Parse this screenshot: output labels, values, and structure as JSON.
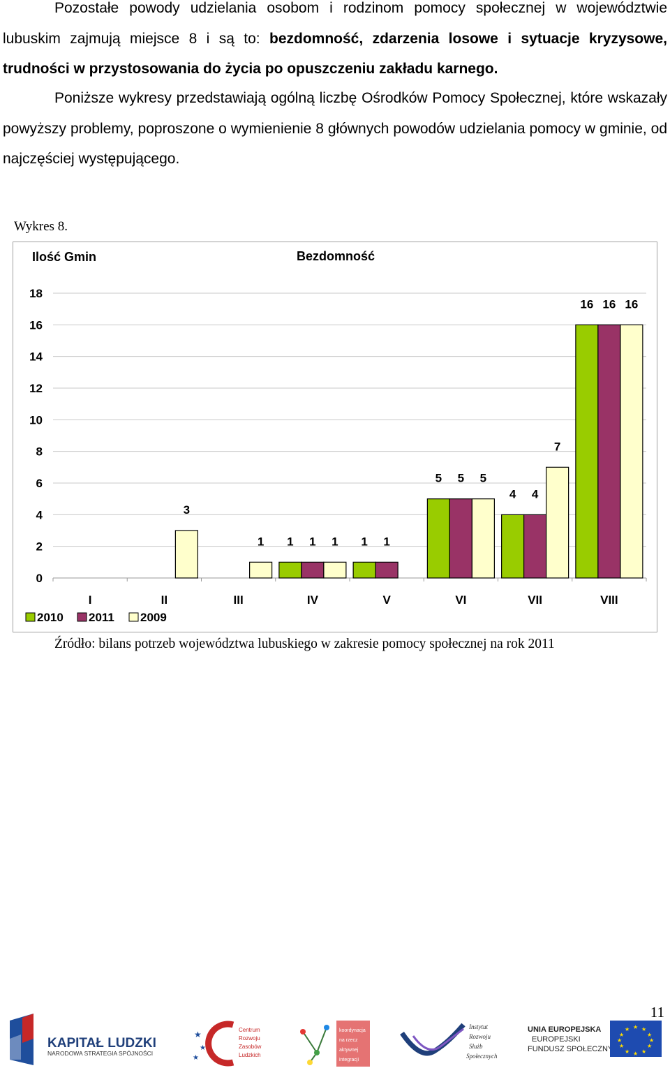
{
  "text": {
    "p1_normal": "Pozostałe powody udzielania osobom i rodzinom pomocy społecznej w województwie lubuskim zajmują miejsce 8 i są to: ",
    "p1_bold": "bezdomność, zdarzenia losowe i sytuacje kryzysowe, trudności w przystosowania do życia po opuszczeniu zakładu karnego.",
    "p2": "Poniższe wykresy przedstawiają ogólną liczbę Ośrodków Pomocy Społecznej, które wskazały powyższy problemy, poproszone o wymienienie 8 głównych powodów udzielania pomocy w gminie, od najczęściej występującego.",
    "caption": "Wykres 8.",
    "source": "Źródło: bilans potrzeb województwa lubuskiego w zakresie pomocy społecznej na rok 2011",
    "page_number": "11"
  },
  "chart_data": {
    "type": "bar",
    "title": "Bezdomność",
    "ylabel": "Ilość Gmin",
    "xlabel": "",
    "categories": [
      "I",
      "II",
      "III",
      "IV",
      "V",
      "VI",
      "VII",
      "VIII"
    ],
    "series": [
      {
        "name": "2010",
        "color": "#99cc00",
        "values": [
          null,
          null,
          null,
          1,
          1,
          5,
          4,
          16
        ]
      },
      {
        "name": "2011",
        "color": "#993366",
        "values": [
          null,
          null,
          null,
          1,
          1,
          5,
          4,
          16
        ]
      },
      {
        "name": "2009",
        "color": "#ffffcc",
        "values": [
          null,
          3,
          1,
          1,
          null,
          5,
          7,
          16
        ]
      }
    ],
    "ylim": [
      0,
      18
    ],
    "yticks": [
      0,
      2,
      4,
      6,
      8,
      10,
      12,
      14,
      16,
      18
    ],
    "grid": true,
    "legend": "bottom-left",
    "data_labels": true
  },
  "logos": {
    "kapital_ludzki_line1": "KAPITAŁ LUDZKI",
    "kapital_ludzki_line2": "NARODOWA STRATEGIA SPÓJNOŚCI",
    "crzl": [
      "Centrum",
      "Rozwoju",
      "Zasobów",
      "Ludzkich"
    ],
    "koordynacja": [
      "koordynacja",
      "na rzecz",
      "aktywnej",
      "integracji"
    ],
    "instytut": [
      "Instytut",
      "Rozwoju",
      "Służb",
      "Społecznych"
    ],
    "ue_line1": "UNIA EUROPEJSKA",
    "ue_line2": "EUROPEJSKI",
    "ue_line3": "FUNDUSZ SPOŁECZNY"
  }
}
